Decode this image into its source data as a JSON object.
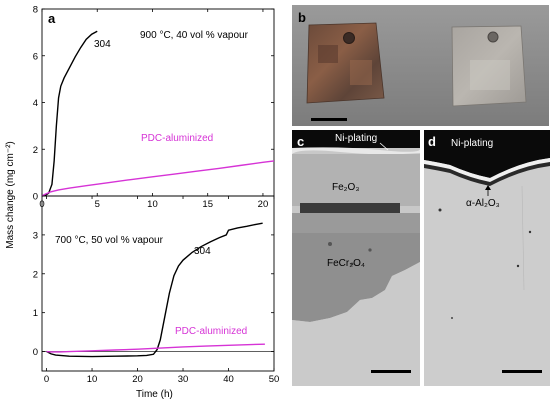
{
  "panels": {
    "a": {
      "letter": "a",
      "condition": "900 °C, 40 vol % vapour"
    },
    "lower": {
      "condition": "700 °C, 50 vol % vapour"
    },
    "b": {
      "letter": "b"
    },
    "c": {
      "letter": "c",
      "labels": {
        "plating": "Ni-plating",
        "oxide_outer": "Fe₂O₃",
        "oxide_inner": "FeCr₂O₄"
      }
    },
    "d": {
      "letter": "d",
      "labels": {
        "plating": "Ni-plating",
        "oxide": "α-Al₂O₃"
      }
    }
  },
  "colors": {
    "series_304": "#000000",
    "series_pdc": "#d633d6",
    "photo_background": "#8e8e8e",
    "sem_matrix": "#c6c6c6"
  },
  "chart_data": [
    {
      "type": "line",
      "title": "900 °C, 40 vol % vapour",
      "xlabel": "",
      "ylabel": "Mass change (mg cm⁻²)",
      "xlim": [
        0,
        21
      ],
      "ylim": [
        0,
        8
      ],
      "xticks": [
        "0",
        "5",
        "10",
        "15",
        "20"
      ],
      "yticks": [
        "0",
        "2",
        "4",
        "6",
        "8"
      ],
      "series": [
        {
          "name": "304",
          "color": "#000000",
          "x": [
            0,
            0.3,
            0.6,
            0.9,
            1.1,
            1.3,
            1.5,
            1.7,
            2.0,
            2.5,
            3.0,
            3.5,
            4.0,
            4.5,
            5.0
          ],
          "y": [
            0,
            0.03,
            0.12,
            0.5,
            1.5,
            3.0,
            4.2,
            4.7,
            5.05,
            5.5,
            5.95,
            6.35,
            6.7,
            6.92,
            7.05
          ]
        },
        {
          "name": "PDC-aluminized",
          "color": "#d633d6",
          "x": [
            0,
            0.3,
            0.8,
            1.5,
            2.5,
            4,
            6,
            8,
            10,
            12,
            14,
            16,
            18,
            20,
            21
          ],
          "y": [
            0,
            0.08,
            0.18,
            0.26,
            0.34,
            0.44,
            0.57,
            0.7,
            0.82,
            0.94,
            1.06,
            1.18,
            1.31,
            1.44,
            1.5
          ]
        }
      ]
    },
    {
      "type": "line",
      "title": "700 °C, 50 vol % vapour",
      "xlabel": "Time (h)",
      "ylabel": "Mass change (mg cm⁻²)",
      "xlim": [
        -1,
        50
      ],
      "ylim": [
        -0.5,
        4
      ],
      "xticks": [
        "0",
        "10",
        "20",
        "30",
        "40",
        "50"
      ],
      "yticks": [
        "0",
        "1",
        "2",
        "3"
      ],
      "zero_line": true,
      "series": [
        {
          "name": "304",
          "color": "#000000",
          "x": [
            0,
            1,
            2,
            5,
            10,
            15,
            20,
            22,
            23.5,
            24.3,
            25,
            26,
            27,
            28,
            29,
            30,
            32,
            34,
            36,
            38,
            39.5,
            40,
            42,
            44,
            46,
            47.5
          ],
          "y": [
            0,
            -0.06,
            -0.09,
            -0.12,
            -0.13,
            -0.12,
            -0.11,
            -0.1,
            -0.07,
            0.05,
            0.3,
            0.9,
            1.5,
            1.95,
            2.2,
            2.35,
            2.55,
            2.7,
            2.82,
            2.93,
            3.0,
            3.12,
            3.18,
            3.22,
            3.27,
            3.3
          ]
        },
        {
          "name": "PDC-aluminized",
          "color": "#d633d6",
          "x": [
            0,
            1,
            3,
            5,
            10,
            15,
            20,
            25,
            30,
            35,
            40,
            45,
            48
          ],
          "y": [
            0,
            -0.01,
            -0.01,
            0.0,
            0.02,
            0.04,
            0.06,
            0.09,
            0.12,
            0.14,
            0.16,
            0.18,
            0.19
          ]
        }
      ],
      "annotations": [
        "304",
        "PDC-aluminized"
      ]
    }
  ]
}
